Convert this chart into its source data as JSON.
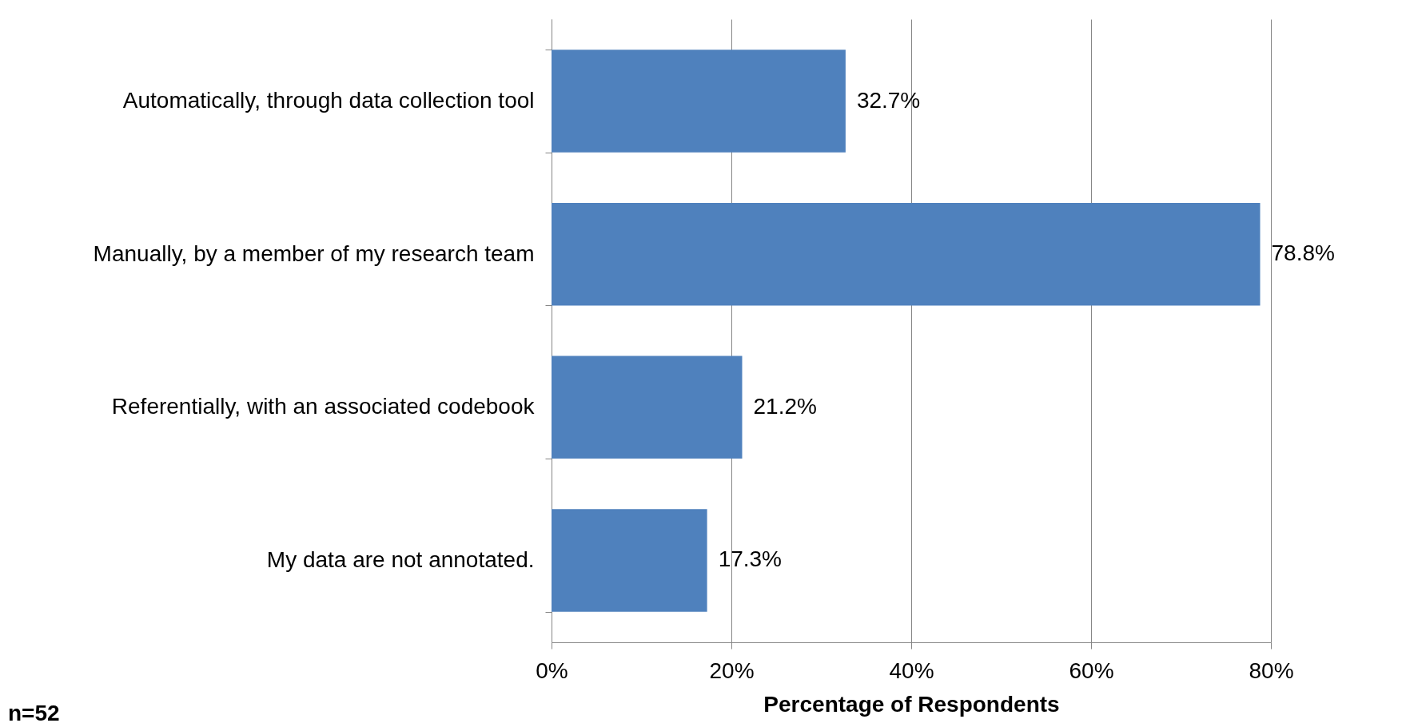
{
  "chart_data": {
    "type": "bar",
    "orientation": "horizontal",
    "xlabel": "Percentage of Respondents",
    "categories": [
      "Automatically, through data collection tool",
      "Manually, by a member of my research team",
      "Referentially, with an associated codebook",
      "My data are not annotated."
    ],
    "values": [
      32.7,
      78.8,
      21.2,
      17.3
    ],
    "color": "#4f81bd",
    "value_labels": [
      "32.7%",
      "78.8%",
      "21.2%",
      "17.3%"
    ],
    "xlim": [
      0,
      80
    ],
    "xticks": [
      {
        "value": 0,
        "label": "0%"
      },
      {
        "value": 20,
        "label": "20%"
      },
      {
        "value": 40,
        "label": "40%"
      },
      {
        "value": 60,
        "label": "60%"
      },
      {
        "value": 80,
        "label": "80%"
      }
    ],
    "grid": "x",
    "annotations": [
      "n=52"
    ]
  }
}
